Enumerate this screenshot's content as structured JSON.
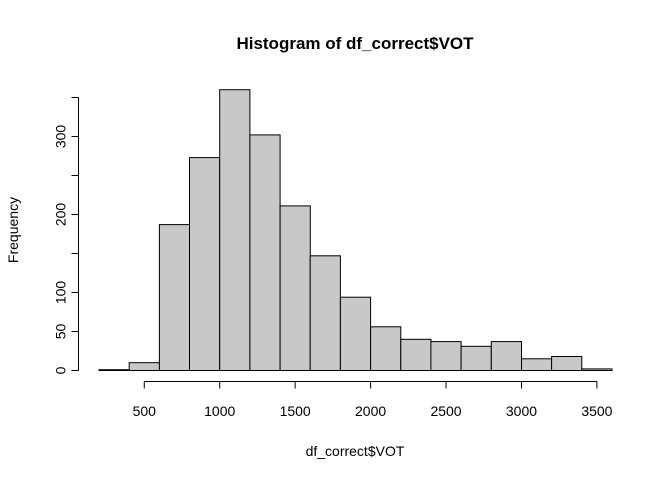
{
  "chart_data": {
    "type": "bar",
    "title": "Histogram of df_correct$VOT",
    "xlabel": "df_correct$VOT",
    "ylabel": "Frequency",
    "bin_edges": [
      200,
      400,
      600,
      800,
      1000,
      1200,
      1400,
      1600,
      1800,
      2000,
      2200,
      2400,
      2600,
      2800,
      3000,
      3200,
      3400,
      3600
    ],
    "values": [
      1,
      10,
      187,
      273,
      360,
      302,
      211,
      147,
      94,
      56,
      40,
      37,
      31,
      37,
      15,
      18,
      2
    ],
    "x_ticks": [
      500,
      1000,
      1500,
      2000,
      2500,
      3000,
      3500
    ],
    "y_ticks": [
      0,
      50,
      100,
      200,
      300
    ],
    "xlim": [
      200,
      3600
    ],
    "ylim": [
      0,
      350
    ],
    "grid": false,
    "colors": {
      "bar_fill": "#c8c8c8",
      "bar_stroke": "#000000"
    }
  }
}
